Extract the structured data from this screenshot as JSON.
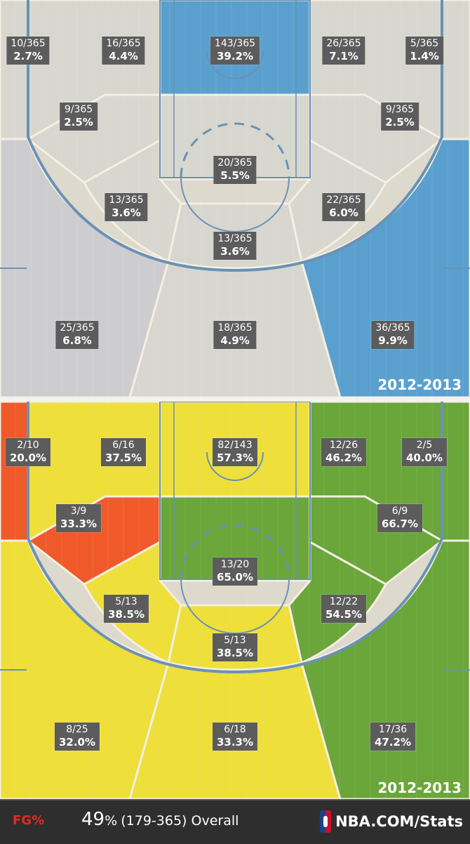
{
  "chart_data": [
    {
      "type": "heatmap",
      "zones": [
        {
          "zone": "left-corner-3",
          "fraction": "10/365",
          "percent": "2.7%",
          "color": "#d7d7cf"
        },
        {
          "zone": "left-wing-midrange-top",
          "fraction": "16/365",
          "percent": "4.4%",
          "color": "#d7d7cf"
        },
        {
          "zone": "restricted-area",
          "fraction": "143/365",
          "percent": "39.2%",
          "color": "#5aa0cf"
        },
        {
          "zone": "right-wing-midrange-top",
          "fraction": "26/365",
          "percent": "7.1%",
          "color": "#d7d7cf"
        },
        {
          "zone": "right-corner-3",
          "fraction": "5/365",
          "percent": "1.4%",
          "color": "#d7d7cf"
        },
        {
          "zone": "left-baseline-midrange",
          "fraction": "9/365",
          "percent": "2.5%",
          "color": "#d7d7cf"
        },
        {
          "zone": "right-baseline-midrange",
          "fraction": "9/365",
          "percent": "2.5%",
          "color": "#d7d7cf"
        },
        {
          "zone": "paint-non-ra",
          "fraction": "20/365",
          "percent": "5.5%",
          "color": "#d7d7cf"
        },
        {
          "zone": "left-elbow-midrange",
          "fraction": "13/365",
          "percent": "3.6%",
          "color": "#d7d7cf"
        },
        {
          "zone": "right-elbow-midrange",
          "fraction": "22/365",
          "percent": "6.0%",
          "color": "#d7d7cf"
        },
        {
          "zone": "top-key-midrange",
          "fraction": "13/365",
          "percent": "3.6%",
          "color": "#d7d7cf"
        },
        {
          "zone": "left-above-break-3",
          "fraction": "25/365",
          "percent": "6.8%",
          "color": "#cdcdd0"
        },
        {
          "zone": "center-above-break-3",
          "fraction": "18/365",
          "percent": "4.9%",
          "color": "#d7d7cf"
        },
        {
          "zone": "right-above-break-3",
          "fraction": "36/365",
          "percent": "9.9%",
          "color": "#5aa0cf"
        }
      ],
      "season": "2012-2013"
    },
    {
      "type": "heatmap",
      "zones": [
        {
          "zone": "left-corner-3",
          "fraction": "2/10",
          "percent": "20.0%",
          "color": "#f05a2a"
        },
        {
          "zone": "left-wing-midrange-top",
          "fraction": "6/16",
          "percent": "37.5%",
          "color": "#eedf3a"
        },
        {
          "zone": "restricted-area",
          "fraction": "82/143",
          "percent": "57.3%",
          "color": "#eedf3a"
        },
        {
          "zone": "right-wing-midrange-top",
          "fraction": "12/26",
          "percent": "46.2%",
          "color": "#6aa63a"
        },
        {
          "zone": "right-corner-3",
          "fraction": "2/5",
          "percent": "40.0%",
          "color": "#6aa63a"
        },
        {
          "zone": "left-baseline-midrange",
          "fraction": "3/9",
          "percent": "33.3%",
          "color": "#f05a2a"
        },
        {
          "zone": "right-baseline-midrange",
          "fraction": "6/9",
          "percent": "66.7%",
          "color": "#6aa63a"
        },
        {
          "zone": "paint-non-ra",
          "fraction": "13/20",
          "percent": "65.0%",
          "color": "#6aa63a"
        },
        {
          "zone": "left-elbow-midrange",
          "fraction": "5/13",
          "percent": "38.5%",
          "color": "#eedf3a"
        },
        {
          "zone": "right-elbow-midrange",
          "fraction": "12/22",
          "percent": "54.5%",
          "color": "#6aa63a"
        },
        {
          "zone": "top-key-midrange",
          "fraction": "5/13",
          "percent": "38.5%",
          "color": "#eedf3a"
        },
        {
          "zone": "left-above-break-3",
          "fraction": "8/25",
          "percent": "32.0%",
          "color": "#eedf3a"
        },
        {
          "zone": "center-above-break-3",
          "fraction": "6/18",
          "percent": "33.3%",
          "color": "#eedf3a"
        },
        {
          "zone": "right-above-break-3",
          "fraction": "17/36",
          "percent": "47.2%",
          "color": "#6aa63a"
        }
      ],
      "season": "2012-2013"
    }
  ],
  "footer": {
    "metric": "FG%",
    "overall_pct": "49",
    "overall_pct_sign": "%",
    "overall_detail": "(179-365) Overall",
    "brand": "NBA.COM/Stats",
    "brand_icon": "nba-logo-icon"
  },
  "colors": {
    "court_line": "#5b8db5",
    "label_bg": "#5c5c5c",
    "metric_red": "#e8281c"
  }
}
